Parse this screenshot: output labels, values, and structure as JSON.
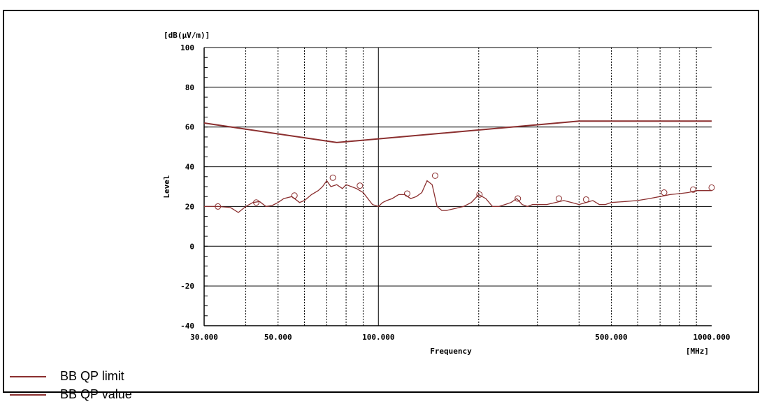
{
  "caption": "",
  "chart_data": {
    "type": "line",
    "xscale": "log",
    "xlim": [
      30,
      1000
    ],
    "ylim": [
      -40,
      100
    ],
    "xlabel": "Frequency",
    "xunit": "[MHz]",
    "ylabel": "Level",
    "yunit": "[dB(µV/m)]",
    "xticks": [
      {
        "value": 30,
        "label": "30.000"
      },
      {
        "value": 50,
        "label": "50.000"
      },
      {
        "value": 100,
        "label": "100.000"
      },
      {
        "value": 500,
        "label": "500.000"
      },
      {
        "value": 1000,
        "label": "1000.000"
      }
    ],
    "yticks": [
      100,
      80,
      60,
      40,
      20,
      0,
      -20,
      -40
    ],
    "series": [
      {
        "name": "BB QP limit",
        "color": "#8b2f2f",
        "x": [
          30,
          75,
          400,
          1000
        ],
        "y": [
          62,
          52.2,
          63,
          63
        ]
      },
      {
        "name": "BB QP value",
        "color": "#8b2f2f",
        "x": [
          30,
          33,
          36,
          38,
          40,
          42,
          44,
          46,
          48,
          50,
          52,
          55,
          58,
          60,
          63,
          66,
          68,
          70,
          72,
          75,
          78,
          80,
          83,
          86,
          88,
          90,
          93,
          96,
          100,
          103,
          106,
          110,
          115,
          120,
          125,
          130,
          135,
          140,
          145,
          150,
          155,
          160,
          170,
          180,
          190,
          200,
          210,
          220,
          230,
          240,
          250,
          260,
          270,
          280,
          290,
          300,
          320,
          340,
          360,
          380,
          400,
          420,
          440,
          460,
          480,
          500,
          550,
          600,
          650,
          700,
          750,
          800,
          850,
          900,
          950,
          1000
        ],
        "y": [
          20,
          20,
          19.5,
          17,
          20,
          22,
          22.5,
          20,
          20.5,
          22,
          24,
          25,
          22,
          23,
          26,
          28,
          30,
          33,
          30,
          31,
          29,
          31,
          30,
          29,
          28,
          27,
          24,
          21,
          20,
          22,
          23,
          24,
          26,
          26,
          24,
          25,
          27,
          33,
          31,
          20,
          18,
          18,
          19,
          20,
          22,
          26,
          24,
          20,
          20,
          21,
          22,
          24,
          21,
          20,
          21,
          21,
          21,
          22,
          23,
          22,
          21,
          22,
          23,
          21,
          21,
          22,
          22.5,
          23,
          24,
          25,
          26,
          26.5,
          27,
          28,
          28,
          28
        ]
      }
    ],
    "markers": {
      "x": [
        33,
        43,
        56,
        73,
        88,
        122,
        148,
        201,
        262,
        348,
        420,
        720,
        880,
        1000
      ],
      "y": [
        20,
        22,
        25.5,
        34.5,
        30.5,
        26.5,
        35.5,
        26,
        24,
        24,
        23.5,
        27,
        28.5,
        29.5
      ]
    }
  }
}
